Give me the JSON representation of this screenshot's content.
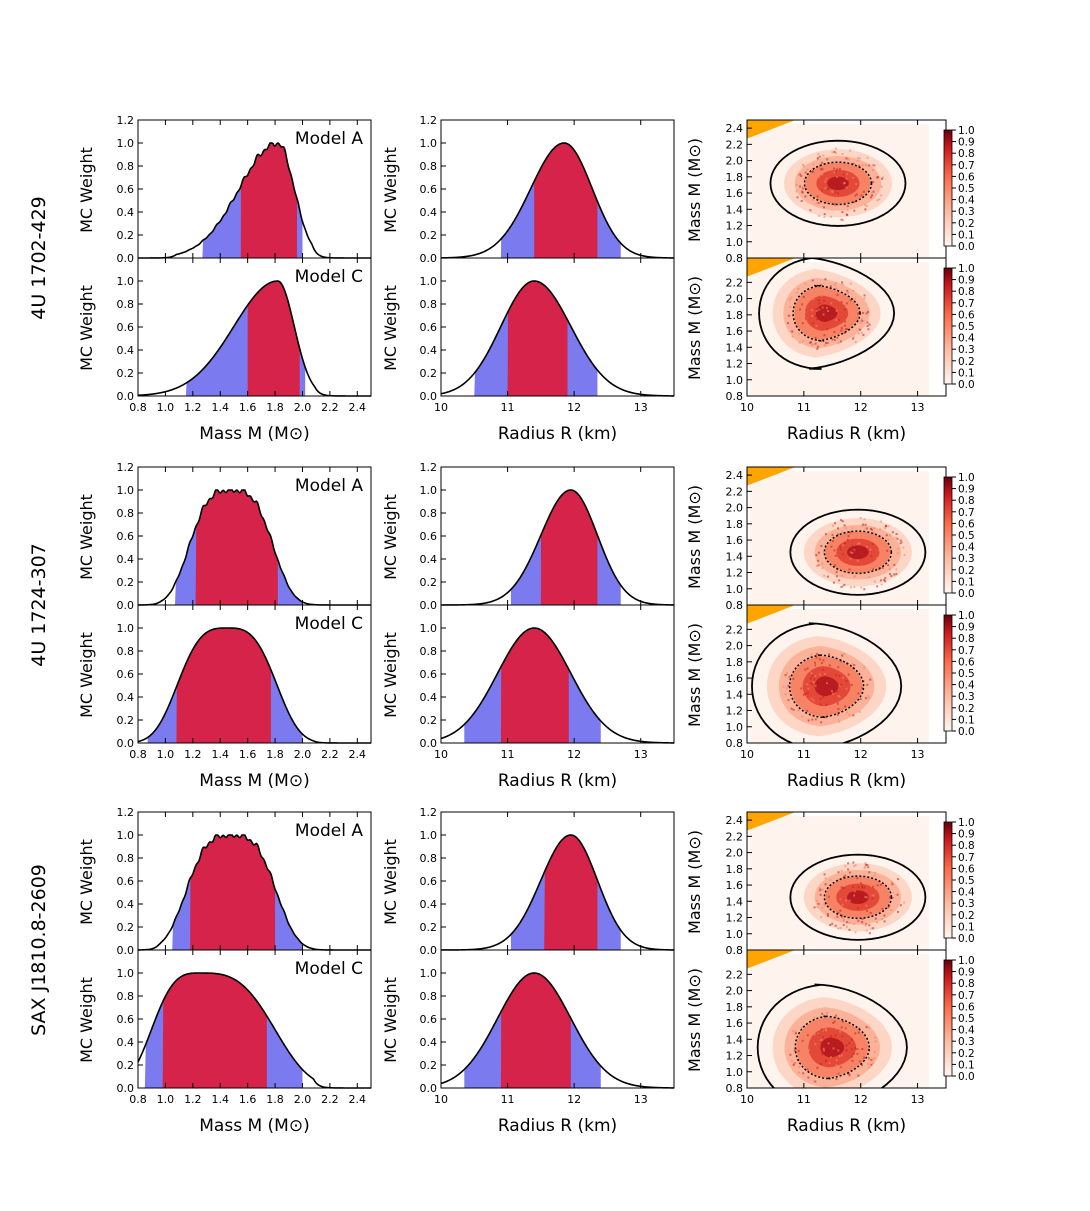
{
  "figure": {
    "background": "#ffffff"
  },
  "colors": {
    "blue": "#7b7bef",
    "red": "#d6234a",
    "orange": "#ffa500",
    "heat_low": "#fde0d4",
    "heat_mid": "#ef6548",
    "heat_high": "#8b0000"
  },
  "chart_data": {
    "type": "area",
    "title": "",
    "sources": [
      {
        "name": "4U 1702-429",
        "models": [
          {
            "label": "Model A",
            "mass": {
              "peak": 1.82,
              "sigma_left": 0.28,
              "sigma_right": 0.12,
              "cut_lo": 1.08,
              "cut_hi": 2.07,
              "blue_range": [
                1.27,
                2.0
              ],
              "red_range": [
                1.55,
                1.96
              ],
              "rough": true,
              "plateau": false
            },
            "radius": {
              "peak": 11.85,
              "sigma_left": 0.5,
              "sigma_right": 0.42,
              "blue_range": [
                10.9,
                12.7
              ],
              "red_range": [
                11.4,
                12.35
              ]
            },
            "mr": {
              "center_r": 11.6,
              "center_m": 1.72,
              "shape": "blob"
            }
          },
          {
            "label": "Model C",
            "mass": {
              "peak": 1.82,
              "sigma_left": 0.32,
              "sigma_right": 0.12,
              "cut_lo": 0.8,
              "cut_hi": 2.09,
              "blue_range": [
                1.15,
                2.02
              ],
              "red_range": [
                1.6,
                1.98
              ],
              "rough": false,
              "plateau": false
            },
            "radius": {
              "peak": 11.4,
              "sigma_left": 0.5,
              "sigma_right": 0.55,
              "blue_range": [
                10.5,
                12.35
              ],
              "red_range": [
                11.0,
                11.9
              ]
            },
            "mr": {
              "center_r": 11.4,
              "center_m": 1.82,
              "shape": "arc"
            }
          }
        ]
      },
      {
        "name": "4U 1724-307",
        "models": [
          {
            "label": "Model A",
            "mass": {
              "peak": 1.48,
              "sigma_left": 0.28,
              "sigma_right": 0.28,
              "cut_lo": 0.95,
              "cut_hi": 2.07,
              "blue_range": [
                1.07,
                2.0
              ],
              "red_range": [
                1.22,
                1.82
              ],
              "rough": true,
              "plateau": true
            },
            "radius": {
              "peak": 11.95,
              "sigma_left": 0.45,
              "sigma_right": 0.4,
              "blue_range": [
                11.05,
                12.7
              ],
              "red_range": [
                11.5,
                12.35
              ]
            },
            "mr": {
              "center_r": 11.95,
              "center_m": 1.45,
              "shape": "blob"
            }
          },
          {
            "label": "Model C",
            "mass": {
              "peak": 1.45,
              "sigma_left": 0.33,
              "sigma_right": 0.33,
              "cut_lo": 0.8,
              "cut_hi": 2.08,
              "blue_range": [
                0.87,
                2.0
              ],
              "red_range": [
                1.08,
                1.77
              ],
              "rough": false,
              "plateau": true
            },
            "radius": {
              "peak": 11.4,
              "sigma_left": 0.55,
              "sigma_right": 0.55,
              "blue_range": [
                10.35,
                12.4
              ],
              "red_range": [
                10.9,
                11.92
              ]
            },
            "mr": {
              "center_r": 11.4,
              "center_m": 1.5,
              "shape": "wide"
            }
          }
        ]
      },
      {
        "name": "SAX J1810.8-2609",
        "models": [
          {
            "label": "Model A",
            "mass": {
              "peak": 1.48,
              "sigma_left": 0.3,
              "sigma_right": 0.3,
              "cut_lo": 0.95,
              "cut_hi": 2.07,
              "blue_range": [
                1.05,
                2.0
              ],
              "red_range": [
                1.18,
                1.8
              ],
              "rough": true,
              "plateau": true
            },
            "radius": {
              "peak": 11.95,
              "sigma_left": 0.45,
              "sigma_right": 0.4,
              "blue_range": [
                11.05,
                12.7
              ],
              "red_range": [
                11.55,
                12.35
              ]
            },
            "mr": {
              "center_r": 11.95,
              "center_m": 1.45,
              "shape": "blob"
            }
          },
          {
            "label": "Model C",
            "mass": {
              "peak": 1.25,
              "sigma_left": 0.32,
              "sigma_right": 0.5,
              "cut_lo": 0.8,
              "cut_hi": 2.08,
              "blue_range": [
                0.85,
                2.0
              ],
              "red_range": [
                0.98,
                1.74
              ],
              "rough": false,
              "plateau": true
            },
            "radius": {
              "peak": 11.4,
              "sigma_left": 0.55,
              "sigma_right": 0.55,
              "blue_range": [
                10.35,
                12.4
              ],
              "red_range": [
                10.9,
                11.95
              ]
            },
            "mr": {
              "center_r": 11.5,
              "center_m": 1.3,
              "shape": "wide"
            }
          }
        ]
      }
    ],
    "mass_axis": {
      "xlim": [
        0.8,
        2.5
      ],
      "ylim": [
        0,
        1.2
      ],
      "xticks": [
        "0.8",
        "1.0",
        "1.2",
        "1.4",
        "1.6",
        "1.8",
        "2.0",
        "2.2",
        "2.4"
      ],
      "yticks": [
        "0.0",
        "0.2",
        "0.4",
        "0.6",
        "0.8",
        "1.0",
        "1.2"
      ],
      "yticks_lower": [
        "0.0",
        "0.2",
        "0.4",
        "0.6",
        "0.8",
        "1.0"
      ],
      "ylabel": "MC Weight",
      "xlabel": "Mass M (M⊙)"
    },
    "radius_axis": {
      "xlim": [
        10,
        13.5
      ],
      "ylim": [
        0,
        1.2
      ],
      "xticks": [
        "10",
        "11",
        "12",
        "13"
      ],
      "yticks": [
        "0.0",
        "0.2",
        "0.4",
        "0.6",
        "0.8",
        "1.0",
        "1.2"
      ],
      "yticks_lower": [
        "0.0",
        "0.2",
        "0.4",
        "0.6",
        "0.8",
        "1.0"
      ],
      "ylabel": "MC Weight",
      "xlabel": "Radius R (km)"
    },
    "mr_axis": {
      "xlim": [
        10,
        13.5
      ],
      "ylim": [
        0.8,
        2.5
      ],
      "xticks": [
        "10",
        "11",
        "12",
        "13"
      ],
      "yticks_upper": [
        "0.8",
        "1.0",
        "1.2",
        "1.4",
        "1.6",
        "1.8",
        "2.0",
        "2.2",
        "2.4"
      ],
      "yticks_lower": [
        "0.8",
        "1.0",
        "1.2",
        "1.4",
        "1.6",
        "1.8",
        "2.0",
        "2.2"
      ],
      "ylabel": "Mass M (M⊙)",
      "xlabel": "Radius R (km)",
      "colorbar_ticks": [
        "0.0",
        "0.1",
        "0.2",
        "0.3",
        "0.4",
        "0.5",
        "0.6",
        "0.7",
        "0.8",
        "0.9",
        "1.0"
      ]
    }
  }
}
